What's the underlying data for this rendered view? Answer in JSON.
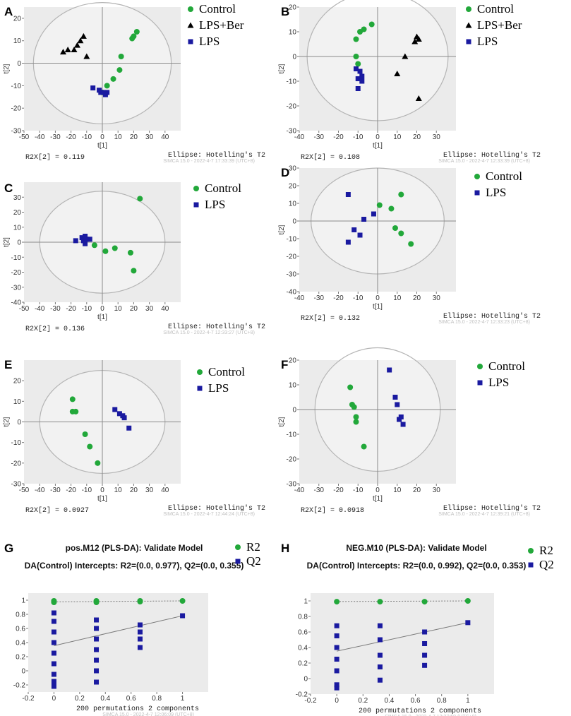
{
  "colors": {
    "control": "#22a83a",
    "lps": "#1a1aa0",
    "lps_ber": "#000000",
    "plot_bg": "#ebebeb",
    "ellipse": "#b4b4b4",
    "line": "#7a7a7a"
  },
  "chart_data": [
    {
      "panel": "A",
      "type": "scatter",
      "xlabel": "t[1]",
      "ylabel": "t[2]",
      "xlim": [
        -50,
        50
      ],
      "ylim": [
        -30,
        25
      ],
      "xticks": [
        -50,
        -40,
        -30,
        -20,
        -10,
        0,
        10,
        20,
        30,
        40
      ],
      "yticks": [
        -30,
        -20,
        -10,
        0,
        10,
        20
      ],
      "ellipse": {
        "rx": 44,
        "ry": 27
      },
      "r2x_label": "R2X[2] = 0.119",
      "ellipse_label": "Ellipse: Hotelling's T2",
      "watermark": "SIMCA 15.0 - 2022-4-7 17:33:39 (UTC+8)",
      "legend": [
        "Control",
        "LPS+Ber",
        "LPS"
      ],
      "series": [
        {
          "name": "Control",
          "marker": "circle",
          "points": [
            [
              22,
              14
            ],
            [
              20,
              12
            ],
            [
              19,
              11
            ],
            [
              12,
              3
            ],
            [
              11,
              -3
            ],
            [
              7,
              -7
            ],
            [
              3,
              -10
            ],
            [
              0,
              -13
            ]
          ]
        },
        {
          "name": "LPS+Ber",
          "marker": "triangle",
          "points": [
            [
              -12,
              12
            ],
            [
              -14,
              10
            ],
            [
              -16,
              8
            ],
            [
              -18,
              6
            ],
            [
              -22,
              6
            ],
            [
              -25,
              5
            ],
            [
              -10,
              3
            ]
          ]
        },
        {
          "name": "LPS",
          "marker": "square",
          "points": [
            [
              -6,
              -11
            ],
            [
              -2,
              -12
            ],
            [
              -1,
              -13
            ],
            [
              1,
              -13
            ],
            [
              2,
              -14
            ],
            [
              3,
              -13
            ]
          ]
        }
      ]
    },
    {
      "panel": "B",
      "type": "scatter",
      "xlabel": "t[1]",
      "ylabel": "t[2]",
      "xlim": [
        -40,
        40
      ],
      "ylim": [
        -30,
        20
      ],
      "xticks": [
        -40,
        -30,
        -20,
        -10,
        0,
        10,
        20,
        30
      ],
      "yticks": [
        -30,
        -20,
        -10,
        0,
        10,
        20
      ],
      "ellipse": {
        "rx": 36,
        "ry": 26
      },
      "r2x_label": "R2X[2] = 0.108",
      "ellipse_label": "Ellipse: Hotelling's T2",
      "watermark": "SIMCA 15.0 - 2022-4-7 12:33:39 (UTC+8)",
      "legend": [
        "Control",
        "LPS+Ber",
        "LPS"
      ],
      "series": [
        {
          "name": "Control",
          "marker": "circle",
          "points": [
            [
              -3,
              13
            ],
            [
              -7,
              11
            ],
            [
              -9,
              10
            ],
            [
              -11,
              7
            ],
            [
              -11,
              0
            ],
            [
              -10,
              -3
            ]
          ]
        },
        {
          "name": "LPS+Ber",
          "marker": "triangle",
          "points": [
            [
              20,
              8
            ],
            [
              21,
              7
            ],
            [
              19,
              6
            ],
            [
              14,
              0
            ],
            [
              10,
              -7
            ],
            [
              21,
              -17
            ]
          ]
        },
        {
          "name": "LPS",
          "marker": "square",
          "points": [
            [
              -11,
              -5
            ],
            [
              -9,
              -6
            ],
            [
              -8,
              -8
            ],
            [
              -10,
              -9
            ],
            [
              -8,
              -10
            ],
            [
              -10,
              -13
            ]
          ]
        }
      ]
    },
    {
      "panel": "C",
      "type": "scatter",
      "xlabel": "t[1]",
      "ylabel": "t[2]",
      "xlim": [
        -50,
        50
      ],
      "ylim": [
        -40,
        40
      ],
      "xticks": [
        -50,
        -40,
        -30,
        -20,
        -10,
        0,
        10,
        20,
        30,
        40
      ],
      "yticks": [
        -40,
        -30,
        -20,
        -10,
        0,
        10,
        20,
        30
      ],
      "ellipse": {
        "rx": 40,
        "ry": 34
      },
      "r2x_label": "R2X[2] = 0.136",
      "ellipse_label": "Ellipse: Hotelling's T2",
      "watermark": "SIMCA 15.0 - 2022-4-7 12:33:27 (UTC+8)",
      "legend": [
        "Control",
        "LPS"
      ],
      "series": [
        {
          "name": "Control",
          "marker": "circle",
          "points": [
            [
              24,
              29
            ],
            [
              -5,
              -2
            ],
            [
              2,
              -6
            ],
            [
              8,
              -4
            ],
            [
              18,
              -7
            ],
            [
              20,
              -19
            ]
          ]
        },
        {
          "name": "LPS",
          "marker": "square",
          "points": [
            [
              -17,
              1
            ],
            [
              -13,
              3
            ],
            [
              -11,
              4
            ],
            [
              -12,
              1
            ],
            [
              -10,
              2
            ],
            [
              -8,
              2
            ],
            [
              -11,
              -1
            ]
          ]
        }
      ]
    },
    {
      "panel": "D",
      "type": "scatter",
      "xlabel": "t[1]",
      "ylabel": "t[2]",
      "xlim": [
        -40,
        40
      ],
      "ylim": [
        -40,
        30
      ],
      "xticks": [
        -40,
        -30,
        -20,
        -10,
        0,
        10,
        20,
        30
      ],
      "yticks": [
        -40,
        -30,
        -20,
        -10,
        0,
        10,
        20,
        30
      ],
      "ellipse": {
        "rx": 34,
        "ry": 30
      },
      "r2x_label": "R2X[2] = 0.132",
      "ellipse_label": "Ellipse: Hotelling's T2",
      "watermark": "SIMCA 15.0 - 2022-4-7 12:33:23 (UTC+8)",
      "legend": [
        "Control",
        "LPS"
      ],
      "series": [
        {
          "name": "Control",
          "marker": "circle",
          "points": [
            [
              1,
              9
            ],
            [
              7,
              7
            ],
            [
              12,
              15
            ],
            [
              9,
              -4
            ],
            [
              12,
              -7
            ],
            [
              17,
              -13
            ]
          ]
        },
        {
          "name": "LPS",
          "marker": "square",
          "points": [
            [
              -15,
              15
            ],
            [
              -7,
              1
            ],
            [
              -2,
              4
            ],
            [
              -12,
              -5
            ],
            [
              -9,
              -8
            ],
            [
              -15,
              -12
            ]
          ]
        }
      ]
    },
    {
      "panel": "E",
      "type": "scatter",
      "xlabel": "t[1]",
      "ylabel": "t[2]",
      "xlim": [
        -50,
        50
      ],
      "ylim": [
        -30,
        30
      ],
      "xticks": [
        -50,
        -40,
        -30,
        -20,
        -10,
        0,
        10,
        20,
        30,
        40
      ],
      "yticks": [
        -30,
        -20,
        -10,
        0,
        10,
        20
      ],
      "ellipse": {
        "rx": 40,
        "ry": 25
      },
      "r2x_label": "R2X[2] = 0.0927",
      "ellipse_label": "Ellipse: Hotelling's T2",
      "watermark": "SIMCA 15.0 - 2022-4-7 12:44:24 (UTC+8)",
      "legend": [
        "Control",
        "LPS"
      ],
      "series": [
        {
          "name": "Control",
          "marker": "circle",
          "points": [
            [
              -19,
              11
            ],
            [
              -19,
              5
            ],
            [
              -17,
              5
            ],
            [
              -11,
              -6
            ],
            [
              -8,
              -12
            ],
            [
              -3,
              -20
            ]
          ]
        },
        {
          "name": "LPS",
          "marker": "square",
          "points": [
            [
              8,
              6
            ],
            [
              11,
              4
            ],
            [
              13,
              3
            ],
            [
              14,
              2
            ],
            [
              17,
              -3
            ]
          ]
        }
      ]
    },
    {
      "panel": "F",
      "type": "scatter",
      "xlabel": "t[1]",
      "ylabel": "t[2]",
      "xlim": [
        -40,
        40
      ],
      "ylim": [
        -30,
        20
      ],
      "xticks": [
        -40,
        -30,
        -20,
        -10,
        0,
        10,
        20,
        30
      ],
      "yticks": [
        -30,
        -20,
        -10,
        0,
        10,
        20
      ],
      "ellipse": {
        "rx": 32,
        "ry": 25
      },
      "r2x_label": "R2X[2] = 0.0918",
      "ellipse_label": "Ellipse: Hotelling's T2",
      "watermark": "SIMCA 15.0 - 2022-4-7 12:39:21 (UTC+8)",
      "legend": [
        "Control",
        "LPS"
      ],
      "series": [
        {
          "name": "Control",
          "marker": "circle",
          "points": [
            [
              -14,
              9
            ],
            [
              -13,
              2
            ],
            [
              -12,
              1
            ],
            [
              -11,
              -3
            ],
            [
              -11,
              -5
            ],
            [
              -7,
              -15
            ]
          ]
        },
        {
          "name": "LPS",
          "marker": "square",
          "points": [
            [
              6,
              16
            ],
            [
              9,
              5
            ],
            [
              10,
              2
            ],
            [
              12,
              -3
            ],
            [
              11,
              -4
            ],
            [
              13,
              -6
            ]
          ]
        }
      ]
    },
    {
      "panel": "G",
      "type": "scatter",
      "subtype": "permutation",
      "title": "pos.M12 (PLS-DA): Validate Model",
      "subtitle": "DA(Control) Intercepts: R2=(0.0, 0.977), Q2=(0.0, 0.355)",
      "xlabel": "200 permutations 2 components",
      "xlim": [
        -0.2,
        1.2
      ],
      "ylim": [
        -0.3,
        1.1
      ],
      "xticks": [
        -0.2,
        0,
        0.2,
        0.4,
        0.6,
        0.8,
        1
      ],
      "yticks": [
        -0.2,
        0,
        0.2,
        0.4,
        0.6,
        0.8,
        1
      ],
      "watermark": "SIMCA 15.0 - 2022-4-7 12:06:09 (UTC+8)",
      "legend": [
        "R2",
        "Q2"
      ],
      "series": [
        {
          "name": "R2",
          "marker": "circle",
          "points": [
            [
              0,
              0.99
            ],
            [
              0,
              0.97
            ],
            [
              0.33,
              0.99
            ],
            [
              0.33,
              0.97
            ],
            [
              0.67,
              0.99
            ],
            [
              0.67,
              0.98
            ],
            [
              1,
              0.99
            ]
          ]
        },
        {
          "name": "Q2",
          "marker": "square",
          "points": [
            [
              0,
              0.82
            ],
            [
              0,
              0.7
            ],
            [
              0,
              0.55
            ],
            [
              0,
              0.4
            ],
            [
              0,
              0.25
            ],
            [
              0,
              0.1
            ],
            [
              0,
              -0.05
            ],
            [
              0,
              -0.15
            ],
            [
              0,
              -0.22
            ],
            [
              0.33,
              0.72
            ],
            [
              0.33,
              0.6
            ],
            [
              0.33,
              0.45
            ],
            [
              0.33,
              0.3
            ],
            [
              0.33,
              0.15
            ],
            [
              0.33,
              0.0
            ],
            [
              0.33,
              -0.16
            ],
            [
              0.67,
              0.65
            ],
            [
              0.67,
              0.55
            ],
            [
              0.67,
              0.45
            ],
            [
              0.67,
              0.33
            ],
            [
              1,
              0.78
            ]
          ]
        }
      ],
      "trend_lines": [
        {
          "name": "R2",
          "from": [
            0,
            0.977
          ],
          "to": [
            1,
            0.99
          ]
        },
        {
          "name": "Q2",
          "from": [
            0,
            0.355
          ],
          "to": [
            1,
            0.78
          ]
        }
      ]
    },
    {
      "panel": "H",
      "type": "scatter",
      "subtype": "permutation",
      "title": "NEG.M10 (PLS-DA): Validate Model",
      "subtitle": "DA(Control) Intercepts: R2=(0.0, 0.992), Q2=(0.0, 0.353)",
      "xlabel": "200 permutations 2 components",
      "xlim": [
        -0.2,
        1.2
      ],
      "ylim": [
        -0.2,
        1.1
      ],
      "xticks": [
        -0.2,
        0,
        0.2,
        0.4,
        0.6,
        0.8,
        1
      ],
      "yticks": [
        -0.2,
        0,
        0.2,
        0.4,
        0.6,
        0.8,
        1
      ],
      "watermark": "SIMCA 15.0 - 2022-4-7 12:37:59 (UTC+8)",
      "legend": [
        "R2",
        "Q2"
      ],
      "series": [
        {
          "name": "R2",
          "marker": "circle",
          "points": [
            [
              0,
              0.99
            ],
            [
              0.33,
              0.99
            ],
            [
              0.67,
              0.99
            ],
            [
              1,
              1.0
            ]
          ]
        },
        {
          "name": "Q2",
          "marker": "square",
          "points": [
            [
              0,
              0.68
            ],
            [
              0,
              0.55
            ],
            [
              0,
              0.4
            ],
            [
              0,
              0.25
            ],
            [
              0,
              0.1
            ],
            [
              0,
              -0.08
            ],
            [
              0,
              -0.12
            ],
            [
              0.33,
              0.68
            ],
            [
              0.33,
              0.5
            ],
            [
              0.33,
              0.3
            ],
            [
              0.33,
              0.15
            ],
            [
              0.33,
              -0.02
            ],
            [
              0.67,
              0.6
            ],
            [
              0.67,
              0.45
            ],
            [
              0.67,
              0.3
            ],
            [
              0.67,
              0.17
            ],
            [
              1,
              0.72
            ]
          ]
        }
      ],
      "trend_lines": [
        {
          "name": "R2",
          "from": [
            0,
            0.992
          ],
          "to": [
            1,
            1.0
          ]
        },
        {
          "name": "Q2",
          "from": [
            0,
            0.353
          ],
          "to": [
            1,
            0.72
          ]
        }
      ]
    }
  ]
}
